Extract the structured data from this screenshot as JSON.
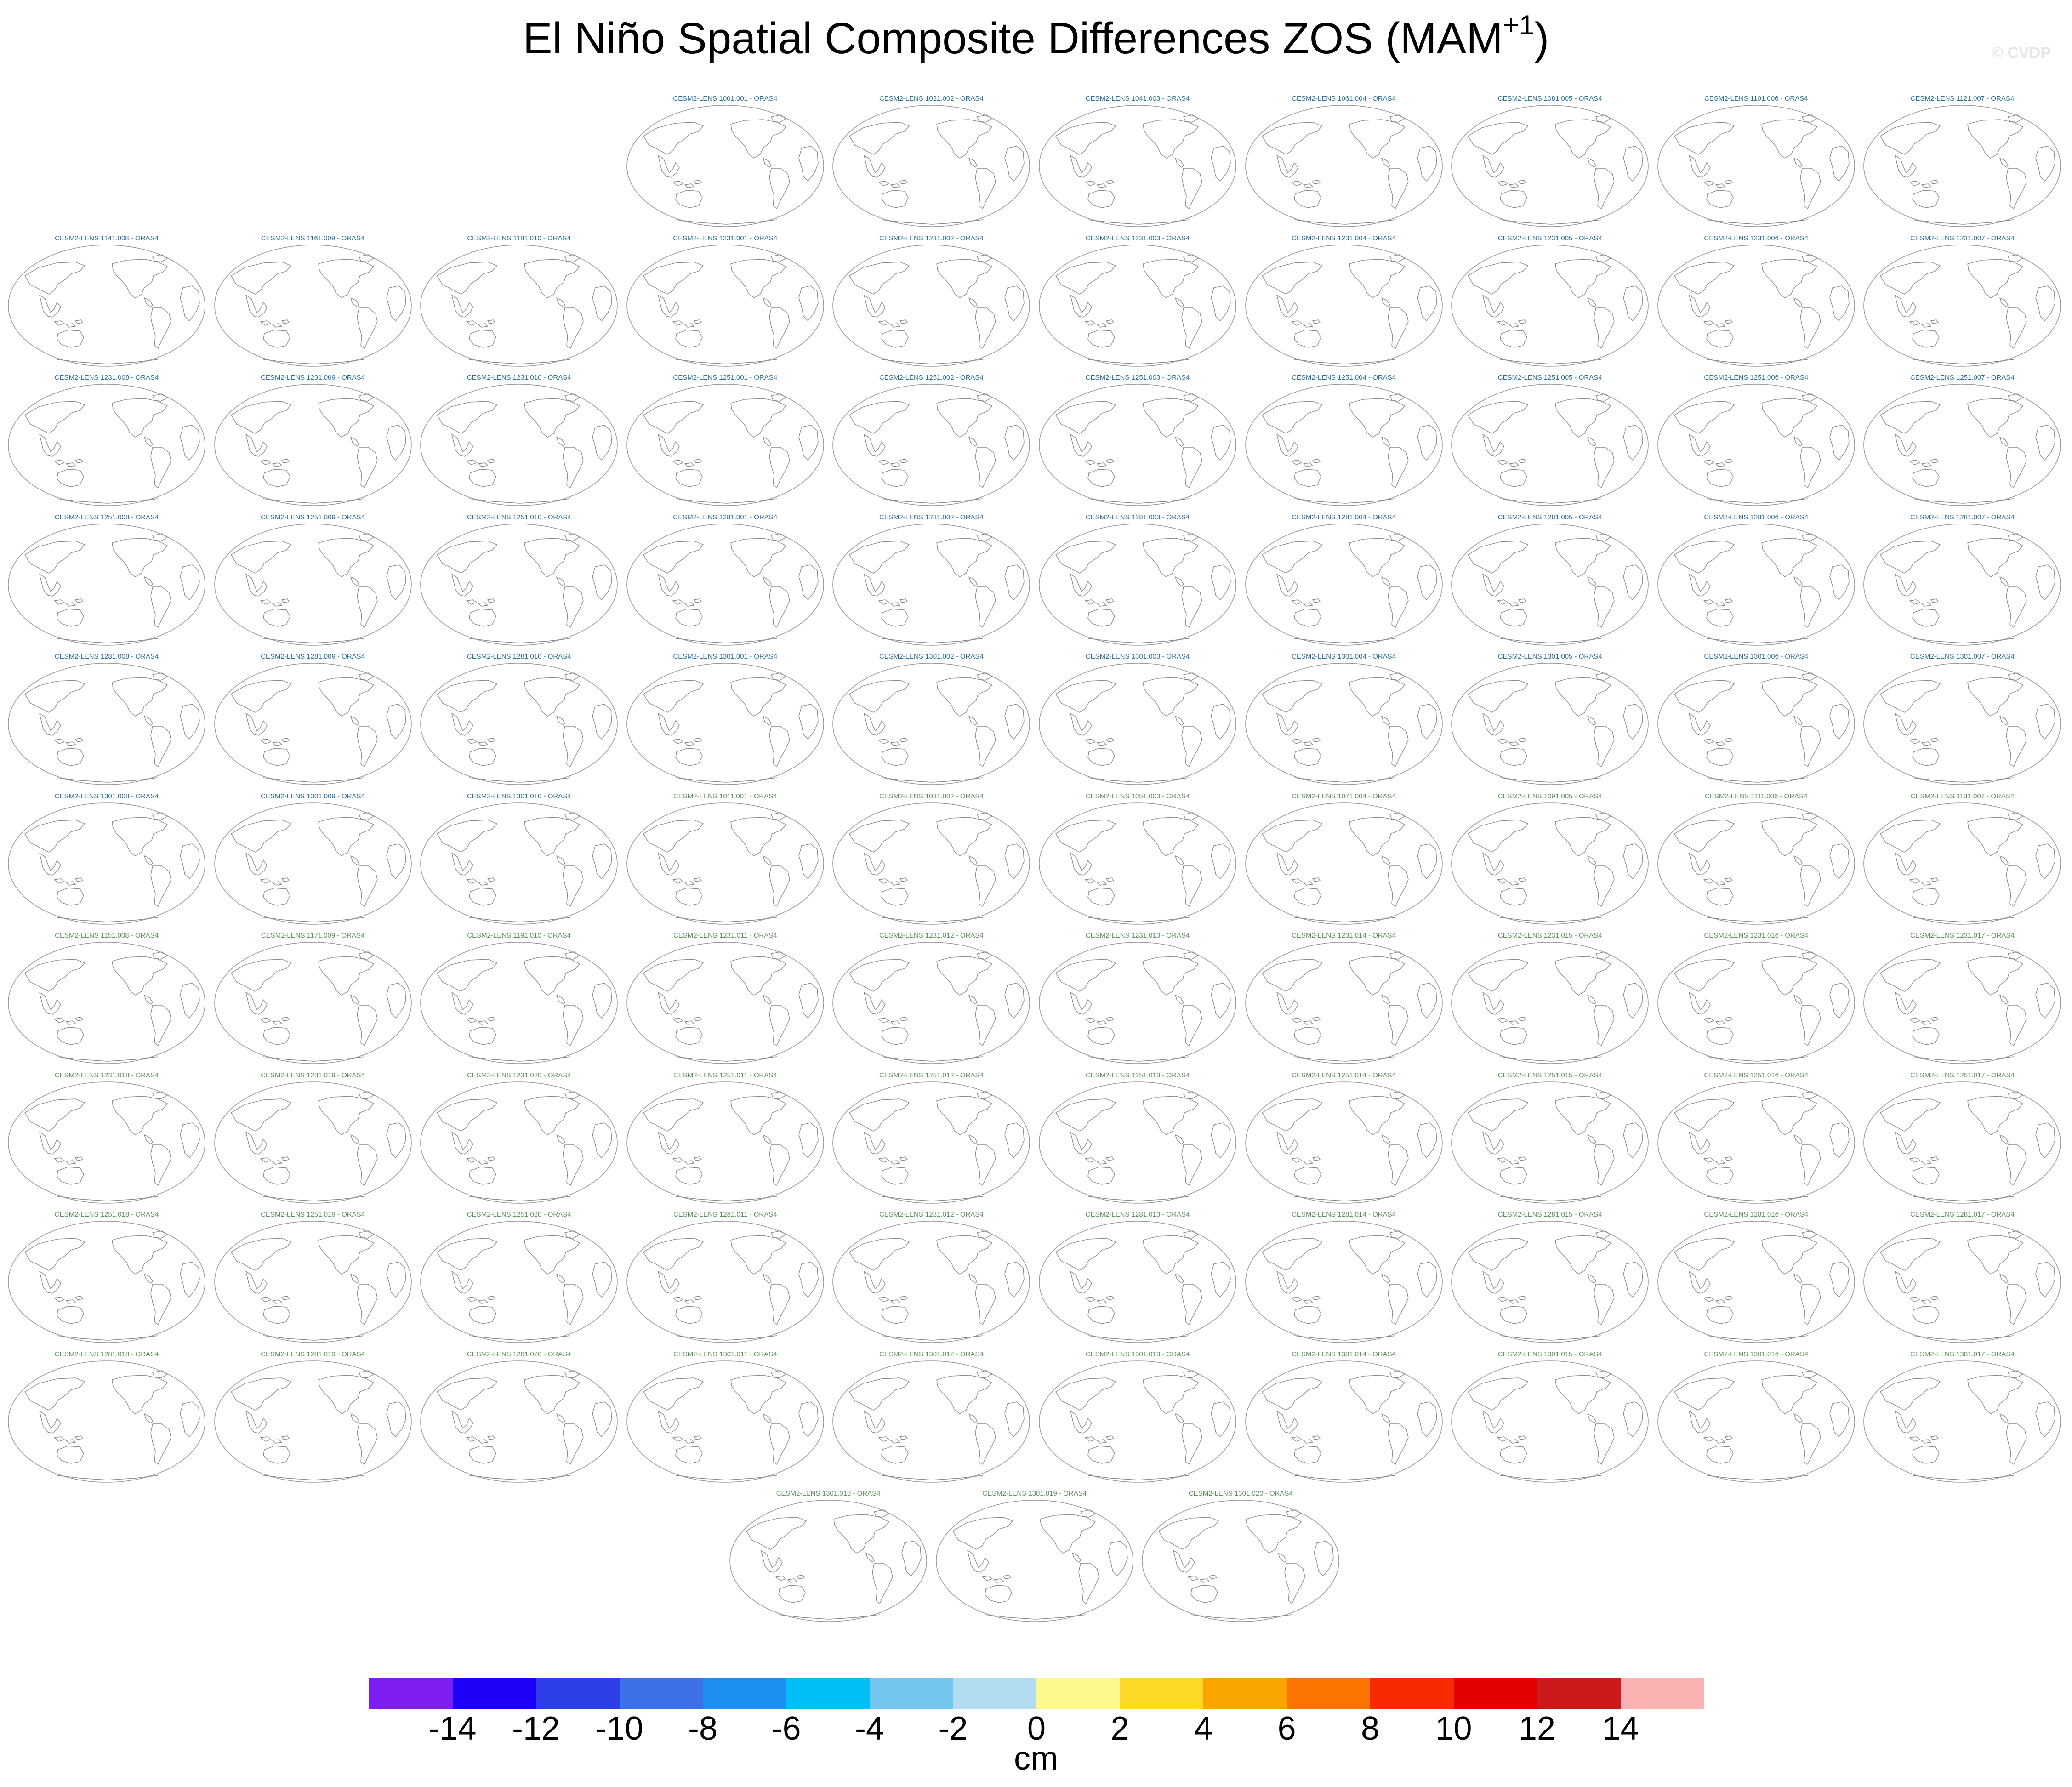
{
  "title": {
    "main": "El Niño Spatial Composite Differences ZOS (MAM",
    "sup": "+1",
    "close": ")"
  },
  "watermark": "© CVDP",
  "colors": {
    "panel_title_blue": "#2a6f97",
    "panel_title_green": "#5e8f5e",
    "coastline": "#8a8a8a",
    "globe_outline": "#9a9a9a"
  },
  "panels": [
    {
      "label": "CESM2-LENS 1001.001 - ORAS4",
      "row": 0,
      "col": 3,
      "group": "blue"
    },
    {
      "label": "CESM2-LENS 1021.002 - ORAS4",
      "row": 0,
      "col": 4,
      "group": "blue"
    },
    {
      "label": "CESM2-LENS 1041.003 - ORAS4",
      "row": 0,
      "col": 5,
      "group": "blue"
    },
    {
      "label": "CESM2-LENS 1061.004 - ORAS4",
      "row": 0,
      "col": 6,
      "group": "blue"
    },
    {
      "label": "CESM2-LENS 1081.005 - ORAS4",
      "row": 0,
      "col": 7,
      "group": "blue"
    },
    {
      "label": "CESM2-LENS 1101.006 - ORAS4",
      "row": 0,
      "col": 8,
      "group": "blue"
    },
    {
      "label": "CESM2-LENS 1121.007 - ORAS4",
      "row": 0,
      "col": 9,
      "group": "blue"
    },
    {
      "label": "CESM2-LENS 1141.008 - ORAS4",
      "row": 1,
      "col": 0,
      "group": "blue"
    },
    {
      "label": "CESM2-LENS 1161.009 - ORAS4",
      "row": 1,
      "col": 1,
      "group": "blue"
    },
    {
      "label": "CESM2-LENS 1181.010 - ORAS4",
      "row": 1,
      "col": 2,
      "group": "blue"
    },
    {
      "label": "CESM2-LENS 1231.001 - ORAS4",
      "row": 1,
      "col": 3,
      "group": "blue"
    },
    {
      "label": "CESM2-LENS 1231.002 - ORAS4",
      "row": 1,
      "col": 4,
      "group": "blue"
    },
    {
      "label": "CESM2-LENS 1231.003 - ORAS4",
      "row": 1,
      "col": 5,
      "group": "blue"
    },
    {
      "label": "CESM2-LENS 1231.004 - ORAS4",
      "row": 1,
      "col": 6,
      "group": "blue"
    },
    {
      "label": "CESM2-LENS 1231.005 - ORAS4",
      "row": 1,
      "col": 7,
      "group": "blue"
    },
    {
      "label": "CESM2-LENS 1231.006 - ORAS4",
      "row": 1,
      "col": 8,
      "group": "blue"
    },
    {
      "label": "CESM2-LENS 1231.007 - ORAS4",
      "row": 1,
      "col": 9,
      "group": "blue"
    },
    {
      "label": "CESM2-LENS 1231.008 - ORAS4",
      "row": 2,
      "col": 0,
      "group": "blue"
    },
    {
      "label": "CESM2-LENS 1231.009 - ORAS4",
      "row": 2,
      "col": 1,
      "group": "blue"
    },
    {
      "label": "CESM2-LENS 1231.010 - ORAS4",
      "row": 2,
      "col": 2,
      "group": "blue"
    },
    {
      "label": "CESM2-LENS 1251.001 - ORAS4",
      "row": 2,
      "col": 3,
      "group": "blue"
    },
    {
      "label": "CESM2-LENS 1251.002 - ORAS4",
      "row": 2,
      "col": 4,
      "group": "blue"
    },
    {
      "label": "CESM2-LENS 1251.003 - ORAS4",
      "row": 2,
      "col": 5,
      "group": "blue"
    },
    {
      "label": "CESM2-LENS 1251.004 - ORAS4",
      "row": 2,
      "col": 6,
      "group": "blue"
    },
    {
      "label": "CESM2-LENS 1251.005 - ORAS4",
      "row": 2,
      "col": 7,
      "group": "blue"
    },
    {
      "label": "CESM2-LENS 1251.006 - ORAS4",
      "row": 2,
      "col": 8,
      "group": "blue"
    },
    {
      "label": "CESM2-LENS 1251.007 - ORAS4",
      "row": 2,
      "col": 9,
      "group": "blue"
    },
    {
      "label": "CESM2-LENS 1251.008 - ORAS4",
      "row": 3,
      "col": 0,
      "group": "blue"
    },
    {
      "label": "CESM2-LENS 1251.009 - ORAS4",
      "row": 3,
      "col": 1,
      "group": "blue"
    },
    {
      "label": "CESM2-LENS 1251.010 - ORAS4",
      "row": 3,
      "col": 2,
      "group": "blue"
    },
    {
      "label": "CESM2-LENS 1281.001 - ORAS4",
      "row": 3,
      "col": 3,
      "group": "blue"
    },
    {
      "label": "CESM2-LENS 1281.002 - ORAS4",
      "row": 3,
      "col": 4,
      "group": "blue"
    },
    {
      "label": "CESM2-LENS 1281.003 - ORAS4",
      "row": 3,
      "col": 5,
      "group": "blue"
    },
    {
      "label": "CESM2-LENS 1281.004 - ORAS4",
      "row": 3,
      "col": 6,
      "group": "blue"
    },
    {
      "label": "CESM2-LENS 1281.005 - ORAS4",
      "row": 3,
      "col": 7,
      "group": "blue"
    },
    {
      "label": "CESM2-LENS 1281.006 - ORAS4",
      "row": 3,
      "col": 8,
      "group": "blue"
    },
    {
      "label": "CESM2-LENS 1281.007 - ORAS4",
      "row": 3,
      "col": 9,
      "group": "blue"
    },
    {
      "label": "CESM2-LENS 1281.008 - ORAS4",
      "row": 4,
      "col": 0,
      "group": "blue"
    },
    {
      "label": "CESM2-LENS 1281.009 - ORAS4",
      "row": 4,
      "col": 1,
      "group": "blue"
    },
    {
      "label": "CESM2-LENS 1281.010 - ORAS4",
      "row": 4,
      "col": 2,
      "group": "blue"
    },
    {
      "label": "CESM2-LENS 1301.001 - ORAS4",
      "row": 4,
      "col": 3,
      "group": "blue"
    },
    {
      "label": "CESM2-LENS 1301.002 - ORAS4",
      "row": 4,
      "col": 4,
      "group": "blue"
    },
    {
      "label": "CESM2-LENS 1301.003 - ORAS4",
      "row": 4,
      "col": 5,
      "group": "blue"
    },
    {
      "label": "CESM2-LENS 1301.004 - ORAS4",
      "row": 4,
      "col": 6,
      "group": "blue"
    },
    {
      "label": "CESM2-LENS 1301.005 - ORAS4",
      "row": 4,
      "col": 7,
      "group": "blue"
    },
    {
      "label": "CESM2-LENS 1301.006 - ORAS4",
      "row": 4,
      "col": 8,
      "group": "blue"
    },
    {
      "label": "CESM2-LENS 1301.007 - ORAS4",
      "row": 4,
      "col": 9,
      "group": "blue"
    },
    {
      "label": "CESM2-LENS 1301.008 - ORAS4",
      "row": 5,
      "col": 0,
      "group": "blue"
    },
    {
      "label": "CESM2-LENS 1301.009 - ORAS4",
      "row": 5,
      "col": 1,
      "group": "blue"
    },
    {
      "label": "CESM2-LENS 1301.010 - ORAS4",
      "row": 5,
      "col": 2,
      "group": "blue"
    },
    {
      "label": "CESM2-LENS 1011.001 - ORAS4",
      "row": 5,
      "col": 3,
      "group": "green"
    },
    {
      "label": "CESM2-LENS 1031.002 - ORAS4",
      "row": 5,
      "col": 4,
      "group": "green"
    },
    {
      "label": "CESM2-LENS 1051.003 - ORAS4",
      "row": 5,
      "col": 5,
      "group": "green"
    },
    {
      "label": "CESM2-LENS 1071.004 - ORAS4",
      "row": 5,
      "col": 6,
      "group": "green"
    },
    {
      "label": "CESM2-LENS 1091.005 - ORAS4",
      "row": 5,
      "col": 7,
      "group": "green"
    },
    {
      "label": "CESM2-LENS 1111.006 - ORAS4",
      "row": 5,
      "col": 8,
      "group": "green"
    },
    {
      "label": "CESM2-LENS 1131.007 - ORAS4",
      "row": 5,
      "col": 9,
      "group": "green"
    },
    {
      "label": "CESM2-LENS 1151.008 - ORAS4",
      "row": 6,
      "col": 0,
      "group": "green"
    },
    {
      "label": "CESM2-LENS 1171.009 - ORAS4",
      "row": 6,
      "col": 1,
      "group": "green"
    },
    {
      "label": "CESM2-LENS 1191.010 - ORAS4",
      "row": 6,
      "col": 2,
      "group": "green"
    },
    {
      "label": "CESM2-LENS 1231.011 - ORAS4",
      "row": 6,
      "col": 3,
      "group": "green"
    },
    {
      "label": "CESM2-LENS 1231.012 - ORAS4",
      "row": 6,
      "col": 4,
      "group": "green"
    },
    {
      "label": "CESM2-LENS 1231.013 - ORAS4",
      "row": 6,
      "col": 5,
      "group": "green"
    },
    {
      "label": "CESM2-LENS 1231.014 - ORAS4",
      "row": 6,
      "col": 6,
      "group": "green"
    },
    {
      "label": "CESM2-LENS 1231.015 - ORAS4",
      "row": 6,
      "col": 7,
      "group": "green"
    },
    {
      "label": "CESM2-LENS 1231.016 - ORAS4",
      "row": 6,
      "col": 8,
      "group": "green"
    },
    {
      "label": "CESM2-LENS 1231.017 - ORAS4",
      "row": 6,
      "col": 9,
      "group": "green"
    },
    {
      "label": "CESM2-LENS 1231.018 - ORAS4",
      "row": 7,
      "col": 0,
      "group": "green"
    },
    {
      "label": "CESM2-LENS 1231.019 - ORAS4",
      "row": 7,
      "col": 1,
      "group": "green"
    },
    {
      "label": "CESM2-LENS 1231.020 - ORAS4",
      "row": 7,
      "col": 2,
      "group": "green"
    },
    {
      "label": "CESM2-LENS 1251.011 - ORAS4",
      "row": 7,
      "col": 3,
      "group": "green"
    },
    {
      "label": "CESM2-LENS 1251.012 - ORAS4",
      "row": 7,
      "col": 4,
      "group": "green"
    },
    {
      "label": "CESM2-LENS 1251.013 - ORAS4",
      "row": 7,
      "col": 5,
      "group": "green"
    },
    {
      "label": "CESM2-LENS 1251.014 - ORAS4",
      "row": 7,
      "col": 6,
      "group": "green"
    },
    {
      "label": "CESM2-LENS 1251.015 - ORAS4",
      "row": 7,
      "col": 7,
      "group": "green"
    },
    {
      "label": "CESM2-LENS 1251.016 - ORAS4",
      "row": 7,
      "col": 8,
      "group": "green"
    },
    {
      "label": "CESM2-LENS 1251.017 - ORAS4",
      "row": 7,
      "col": 9,
      "group": "green"
    },
    {
      "label": "CESM2-LENS 1251.018 - ORAS4",
      "row": 8,
      "col": 0,
      "group": "green"
    },
    {
      "label": "CESM2-LENS 1251.019 - ORAS4",
      "row": 8,
      "col": 1,
      "group": "green"
    },
    {
      "label": "CESM2-LENS 1251.020 - ORAS4",
      "row": 8,
      "col": 2,
      "group": "green"
    },
    {
      "label": "CESM2-LENS 1281.011 - ORAS4",
      "row": 8,
      "col": 3,
      "group": "green"
    },
    {
      "label": "CESM2-LENS 1281.012 - ORAS4",
      "row": 8,
      "col": 4,
      "group": "green"
    },
    {
      "label": "CESM2-LENS 1281.013 - ORAS4",
      "row": 8,
      "col": 5,
      "group": "green"
    },
    {
      "label": "CESM2-LENS 1281.014 - ORAS4",
      "row": 8,
      "col": 6,
      "group": "green"
    },
    {
      "label": "CESM2-LENS 1281.015 - ORAS4",
      "row": 8,
      "col": 7,
      "group": "green"
    },
    {
      "label": "CESM2-LENS 1281.016 - ORAS4",
      "row": 8,
      "col": 8,
      "group": "green"
    },
    {
      "label": "CESM2-LENS 1281.017 - ORAS4",
      "row": 8,
      "col": 9,
      "group": "green"
    },
    {
      "label": "CESM2-LENS 1281.018 - ORAS4",
      "row": 9,
      "col": 0,
      "group": "green"
    },
    {
      "label": "CESM2-LENS 1281.019 - ORAS4",
      "row": 9,
      "col": 1,
      "group": "green"
    },
    {
      "label": "CESM2-LENS 1281.020 - ORAS4",
      "row": 9,
      "col": 2,
      "group": "green"
    },
    {
      "label": "CESM2-LENS 1301.011 - ORAS4",
      "row": 9,
      "col": 3,
      "group": "green"
    },
    {
      "label": "CESM2-LENS 1301.012 - ORAS4",
      "row": 9,
      "col": 4,
      "group": "green"
    },
    {
      "label": "CESM2-LENS 1301.013 - ORAS4",
      "row": 9,
      "col": 5,
      "group": "green"
    },
    {
      "label": "CESM2-LENS 1301.014 - ORAS4",
      "row": 9,
      "col": 6,
      "group": "green"
    },
    {
      "label": "CESM2-LENS 1301.015 - ORAS4",
      "row": 9,
      "col": 7,
      "group": "green"
    },
    {
      "label": "CESM2-LENS 1301.016 - ORAS4",
      "row": 9,
      "col": 8,
      "group": "green"
    },
    {
      "label": "CESM2-LENS 1301.017 - ORAS4",
      "row": 9,
      "col": 9,
      "group": "green"
    },
    {
      "label": "CESM2-LENS 1301.018 - ORAS4",
      "row": 10,
      "col": 3.5,
      "group": "green"
    },
    {
      "label": "CESM2-LENS 1301.019 - ORAS4",
      "row": 10,
      "col": 4.5,
      "group": "green"
    },
    {
      "label": "CESM2-LENS 1301.020 - ORAS4",
      "row": 10,
      "col": 5.5,
      "group": "green"
    }
  ],
  "colorbar": {
    "colors": [
      "#7e1ef2",
      "#1f00f7",
      "#2d3fe6",
      "#3b70e8",
      "#1e8ff2",
      "#00bff6",
      "#73c6ef",
      "#b2dcf0",
      "#fef98b",
      "#fcd827",
      "#fba500",
      "#fb7300",
      "#f82b00",
      "#e20000",
      "#cc1a1a",
      "#fbb2b2"
    ],
    "ticks": [
      "-14",
      "-12",
      "-10",
      "-8",
      "-6",
      "-4",
      "-2",
      "0",
      "2",
      "4",
      "6",
      "8",
      "10",
      "12",
      "14"
    ],
    "label": "cm"
  }
}
